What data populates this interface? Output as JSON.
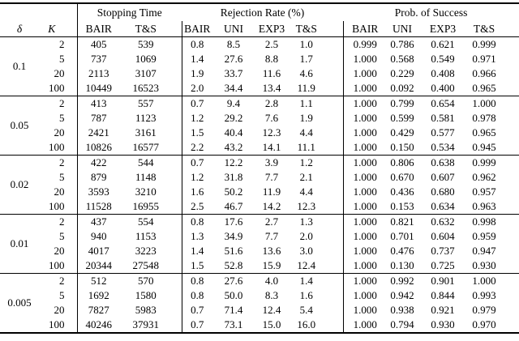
{
  "table": {
    "column_groups": [
      {
        "label": "",
        "span": 2
      },
      {
        "label": "Stopping Time",
        "span": 2
      },
      {
        "label": "Rejection Rate (%)",
        "span": 4
      },
      {
        "label": "Prob. of Success",
        "span": 4
      }
    ],
    "sub_headers": [
      "δ",
      "K",
      "BAIR",
      "T&S",
      "BAIR",
      "UNI",
      "EXP3",
      "T&S",
      "BAIR",
      "UNI",
      "EXP3",
      "T&S"
    ],
    "groups": [
      {
        "delta": "0.1",
        "rows": [
          {
            "k": "2",
            "values": [
              "405",
              "539",
              "0.8",
              "8.5",
              "2.5",
              "1.0",
              "0.999",
              "0.786",
              "0.621",
              "0.999"
            ]
          },
          {
            "k": "5",
            "values": [
              "737",
              "1069",
              "1.4",
              "27.6",
              "8.8",
              "1.7",
              "1.000",
              "0.568",
              "0.549",
              "0.971"
            ]
          },
          {
            "k": "20",
            "values": [
              "2113",
              "3107",
              "1.9",
              "33.7",
              "11.6",
              "4.6",
              "1.000",
              "0.229",
              "0.408",
              "0.966"
            ]
          },
          {
            "k": "100",
            "values": [
              "10449",
              "16523",
              "2.0",
              "34.4",
              "13.4",
              "11.9",
              "1.000",
              "0.092",
              "0.400",
              "0.965"
            ]
          }
        ]
      },
      {
        "delta": "0.05",
        "rows": [
          {
            "k": "2",
            "values": [
              "413",
              "557",
              "0.7",
              "9.4",
              "2.8",
              "1.1",
              "1.000",
              "0.799",
              "0.654",
              "1.000"
            ]
          },
          {
            "k": "5",
            "values": [
              "787",
              "1123",
              "1.2",
              "29.2",
              "7.6",
              "1.9",
              "1.000",
              "0.599",
              "0.581",
              "0.978"
            ]
          },
          {
            "k": "20",
            "values": [
              "2421",
              "3161",
              "1.5",
              "40.4",
              "12.3",
              "4.4",
              "1.000",
              "0.429",
              "0.577",
              "0.965"
            ]
          },
          {
            "k": "100",
            "values": [
              "10826",
              "16577",
              "2.2",
              "43.2",
              "14.1",
              "11.1",
              "1.000",
              "0.150",
              "0.534",
              "0.945"
            ]
          }
        ]
      },
      {
        "delta": "0.02",
        "rows": [
          {
            "k": "2",
            "values": [
              "422",
              "544",
              "0.7",
              "12.2",
              "3.9",
              "1.2",
              "1.000",
              "0.806",
              "0.638",
              "0.999"
            ]
          },
          {
            "k": "5",
            "values": [
              "879",
              "1148",
              "1.2",
              "31.8",
              "7.7",
              "2.1",
              "1.000",
              "0.670",
              "0.607",
              "0.962"
            ]
          },
          {
            "k": "20",
            "values": [
              "3593",
              "3210",
              "1.6",
              "50.2",
              "11.9",
              "4.4",
              "1.000",
              "0.436",
              "0.680",
              "0.957"
            ]
          },
          {
            "k": "100",
            "values": [
              "11528",
              "16955",
              "2.5",
              "46.7",
              "14.2",
              "12.3",
              "1.000",
              "0.153",
              "0.634",
              "0.963"
            ]
          }
        ]
      },
      {
        "delta": "0.01",
        "rows": [
          {
            "k": "2",
            "values": [
              "437",
              "554",
              "0.8",
              "17.6",
              "2.7",
              "1.3",
              "1.000",
              "0.821",
              "0.632",
              "0.998"
            ]
          },
          {
            "k": "5",
            "values": [
              "940",
              "1153",
              "1.3",
              "34.9",
              "7.7",
              "2.0",
              "1.000",
              "0.701",
              "0.604",
              "0.959"
            ]
          },
          {
            "k": "20",
            "values": [
              "4017",
              "3223",
              "1.4",
              "51.6",
              "13.6",
              "3.0",
              "1.000",
              "0.476",
              "0.737",
              "0.947"
            ]
          },
          {
            "k": "100",
            "values": [
              "20344",
              "27548",
              "1.5",
              "52.8",
              "15.9",
              "12.4",
              "1.000",
              "0.130",
              "0.725",
              "0.930"
            ]
          }
        ]
      },
      {
        "delta": "0.005",
        "rows": [
          {
            "k": "2",
            "values": [
              "512",
              "570",
              "0.8",
              "27.6",
              "4.0",
              "1.4",
              "1.000",
              "0.992",
              "0.901",
              "1.000"
            ]
          },
          {
            "k": "5",
            "values": [
              "1692",
              "1580",
              "0.8",
              "50.0",
              "8.3",
              "1.6",
              "1.000",
              "0.942",
              "0.844",
              "0.993"
            ]
          },
          {
            "k": "20",
            "values": [
              "7827",
              "5983",
              "0.7",
              "71.4",
              "12.4",
              "5.4",
              "1.000",
              "0.938",
              "0.921",
              "0.979"
            ]
          },
          {
            "k": "100",
            "values": [
              "40246",
              "37931",
              "0.7",
              "73.1",
              "15.0",
              "16.0",
              "1.000",
              "0.794",
              "0.930",
              "0.970"
            ]
          }
        ]
      }
    ]
  },
  "colors": {
    "text": "#000000",
    "background": "#ffffff",
    "rule": "#000000"
  }
}
